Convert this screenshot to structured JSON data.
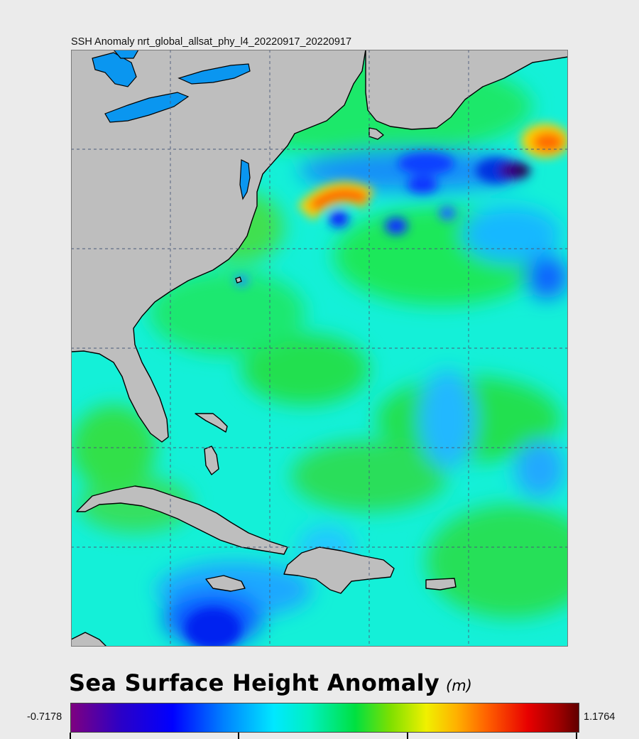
{
  "map": {
    "title": "SSH Anomaly nrt_global_allsat_phy_l4_20220917_20220917",
    "type": "sea-surface-height-anomaly-map",
    "region": "Western North Atlantic / Caribbean"
  },
  "legend": {
    "title": "Sea Surface Height Anomaly",
    "unit": "(m)",
    "min": "-0.7178",
    "max": "1.1764",
    "colormap": [
      "#7e0080",
      "#0000ff",
      "#00e8ff",
      "#00e040",
      "#f0f000",
      "#ff6000",
      "#600000"
    ]
  },
  "colors": {
    "land": "#bebebe",
    "lakes": "#0a96f0",
    "grid": "#4a5a7a",
    "page": "#ebebeb"
  }
}
